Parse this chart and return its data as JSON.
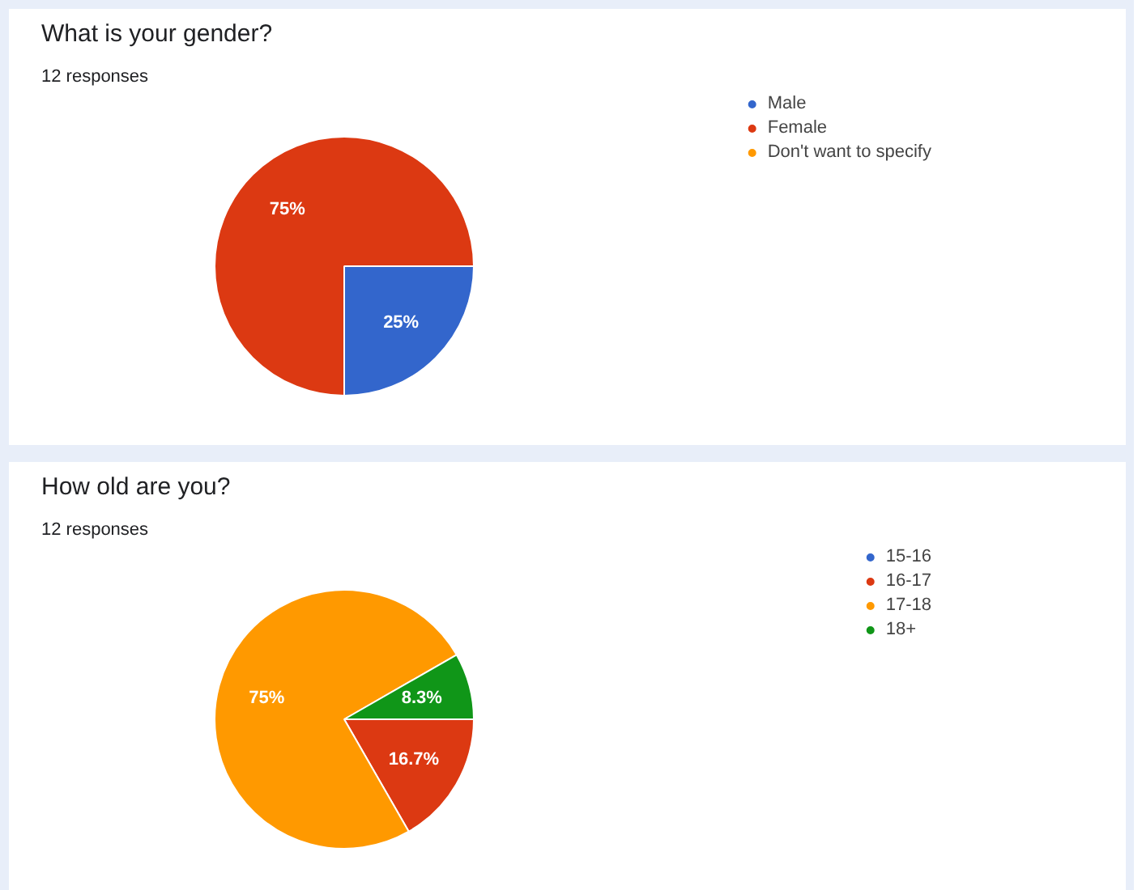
{
  "chart_data": [
    {
      "type": "pie",
      "title": "What is your gender?",
      "subtitle": "12 responses",
      "categories": [
        "Male",
        "Female",
        "Don't want to specify"
      ],
      "values": [
        25,
        75,
        0
      ],
      "colors": [
        "#3366cc",
        "#dc3912",
        "#ff9900"
      ],
      "value_labels": [
        "25%",
        "75%",
        null
      ],
      "legend": "right"
    },
    {
      "type": "pie",
      "title": "How old are you?",
      "subtitle": "12 responses",
      "categories": [
        "15-16",
        "16-17",
        "17-18",
        "18+"
      ],
      "values": [
        0,
        16.7,
        75,
        8.3
      ],
      "colors": [
        "#3366cc",
        "#dc3912",
        "#ff9900",
        "#109618"
      ],
      "value_labels": [
        null,
        "16.7%",
        "75%",
        "8.3%"
      ],
      "legend": "right"
    }
  ]
}
